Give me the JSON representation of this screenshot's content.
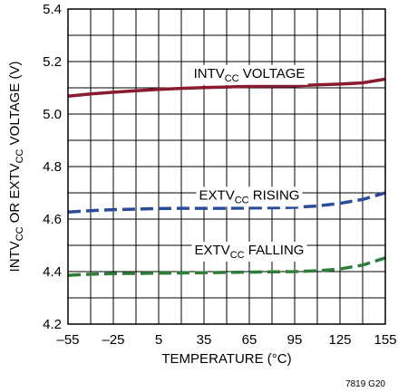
{
  "chart_data": {
    "type": "line",
    "title": "",
    "xlabel": "TEMPERATURE (°C)",
    "ylabel": {
      "parts": [
        {
          "text": "INTV",
          "sub": false
        },
        {
          "text": "CC",
          "sub": true
        },
        {
          "text": " OR EXTV",
          "sub": false
        },
        {
          "text": "CC",
          "sub": true
        },
        {
          "text": " VOLTAGE (V)",
          "sub": false
        }
      ]
    },
    "xlim": [
      -55,
      155
    ],
    "ylim": [
      4.2,
      5.4
    ],
    "x_ticks": [
      -55,
      -25,
      5,
      35,
      65,
      95,
      125,
      155
    ],
    "x_tick_labels": [
      "–55",
      "–25",
      "5",
      "35",
      "65",
      "95",
      "125",
      "155"
    ],
    "y_ticks": [
      4.2,
      4.4,
      4.6,
      4.8,
      5.0,
      5.2,
      5.4
    ],
    "y_tick_labels": [
      "4.2",
      "4.4",
      "4.6",
      "4.8",
      "5.0",
      "5.2",
      "5.4"
    ],
    "x_minor_step": 15,
    "y_minor_step": 0.1,
    "grid": true,
    "figure_id": "7819 G20",
    "series": [
      {
        "name": "INTVCC VOLTAGE",
        "label_parts": [
          {
            "text": "INTV",
            "sub": false
          },
          {
            "text": "CC",
            "sub": true
          },
          {
            "text": " VOLTAGE",
            "sub": false
          }
        ],
        "label_at": [
          65,
          5.156
        ],
        "color": "#8b1a2e",
        "dash": "solid",
        "x": [
          -55,
          -40,
          -25,
          -10,
          5,
          20,
          35,
          50,
          65,
          80,
          95,
          110,
          125,
          140,
          155
        ],
        "y": [
          5.068,
          5.077,
          5.083,
          5.089,
          5.094,
          5.098,
          5.101,
          5.103,
          5.106,
          5.107,
          5.108,
          5.111,
          5.114,
          5.119,
          5.133
        ]
      },
      {
        "name": "EXTVCC RISING",
        "label_parts": [
          {
            "text": "EXTV",
            "sub": false
          },
          {
            "text": "CC",
            "sub": true
          },
          {
            "text": " RISING",
            "sub": false
          }
        ],
        "label_at": [
          65,
          4.692
        ],
        "color": "#2b4c9b",
        "dash": "dashed",
        "x": [
          -55,
          -40,
          -25,
          -10,
          5,
          20,
          35,
          50,
          65,
          80,
          95,
          110,
          125,
          140,
          155
        ],
        "y": [
          4.627,
          4.632,
          4.636,
          4.638,
          4.64,
          4.641,
          4.641,
          4.641,
          4.642,
          4.643,
          4.645,
          4.65,
          4.66,
          4.675,
          4.7
        ]
      },
      {
        "name": "EXTVCC FALLING",
        "label_parts": [
          {
            "text": "EXTV",
            "sub": false
          },
          {
            "text": "CC",
            "sub": true
          },
          {
            "text": " FALLING",
            "sub": false
          }
        ],
        "label_at": [
          65,
          4.483
        ],
        "color": "#2e7d3b",
        "dash": "dashed",
        "x": [
          -55,
          -40,
          -25,
          -10,
          5,
          20,
          35,
          50,
          65,
          80,
          95,
          110,
          125,
          140,
          155
        ],
        "y": [
          4.386,
          4.39,
          4.392,
          4.393,
          4.394,
          4.395,
          4.396,
          4.397,
          4.398,
          4.399,
          4.4,
          4.403,
          4.41,
          4.425,
          4.452
        ]
      }
    ]
  }
}
